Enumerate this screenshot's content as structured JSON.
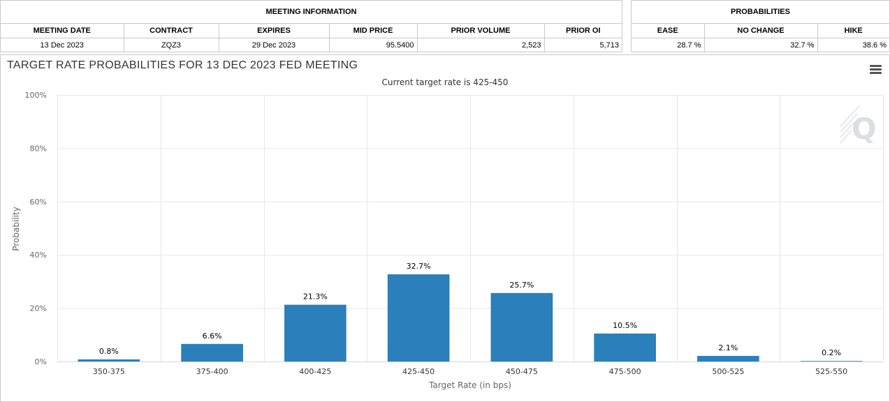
{
  "meeting_info": {
    "header": "MEETING INFORMATION",
    "columns": [
      "MEETING DATE",
      "CONTRACT",
      "EXPIRES",
      "MID PRICE",
      "PRIOR VOLUME",
      "PRIOR OI"
    ],
    "row": [
      "13 Dec 2023",
      "ZQZ3",
      "29 Dec 2023",
      "95.5400",
      "2,523",
      "5,713"
    ]
  },
  "probabilities": {
    "header": "PROBABILITIES",
    "columns": [
      "EASE",
      "NO CHANGE",
      "HIKE"
    ],
    "row": [
      "28.7 %",
      "32.7 %",
      "38.6 %"
    ]
  },
  "chart_data": {
    "type": "bar",
    "title": "TARGET RATE PROBABILITIES FOR 13 DEC 2023 FED MEETING",
    "subtitle": "Current target rate is 425-450",
    "xlabel": "Target Rate (in bps)",
    "ylabel": "Probability",
    "categories": [
      "350-375",
      "375-400",
      "400-425",
      "425-450",
      "450-475",
      "475-500",
      "500-525",
      "525-550"
    ],
    "values": [
      0.8,
      6.6,
      21.3,
      32.7,
      25.7,
      10.5,
      2.1,
      0.2
    ],
    "data_labels": [
      "0.8%",
      "6.6%",
      "21.3%",
      "32.7%",
      "25.7%",
      "10.5%",
      "2.1%",
      "0.2%"
    ],
    "ylim": [
      0,
      100
    ],
    "yticks": [
      0,
      20,
      40,
      60,
      80,
      100
    ],
    "ytick_labels": [
      "0%",
      "20%",
      "40%",
      "60%",
      "80%",
      "100%"
    ],
    "grid": true,
    "bar_color": "#2b7fbb"
  }
}
